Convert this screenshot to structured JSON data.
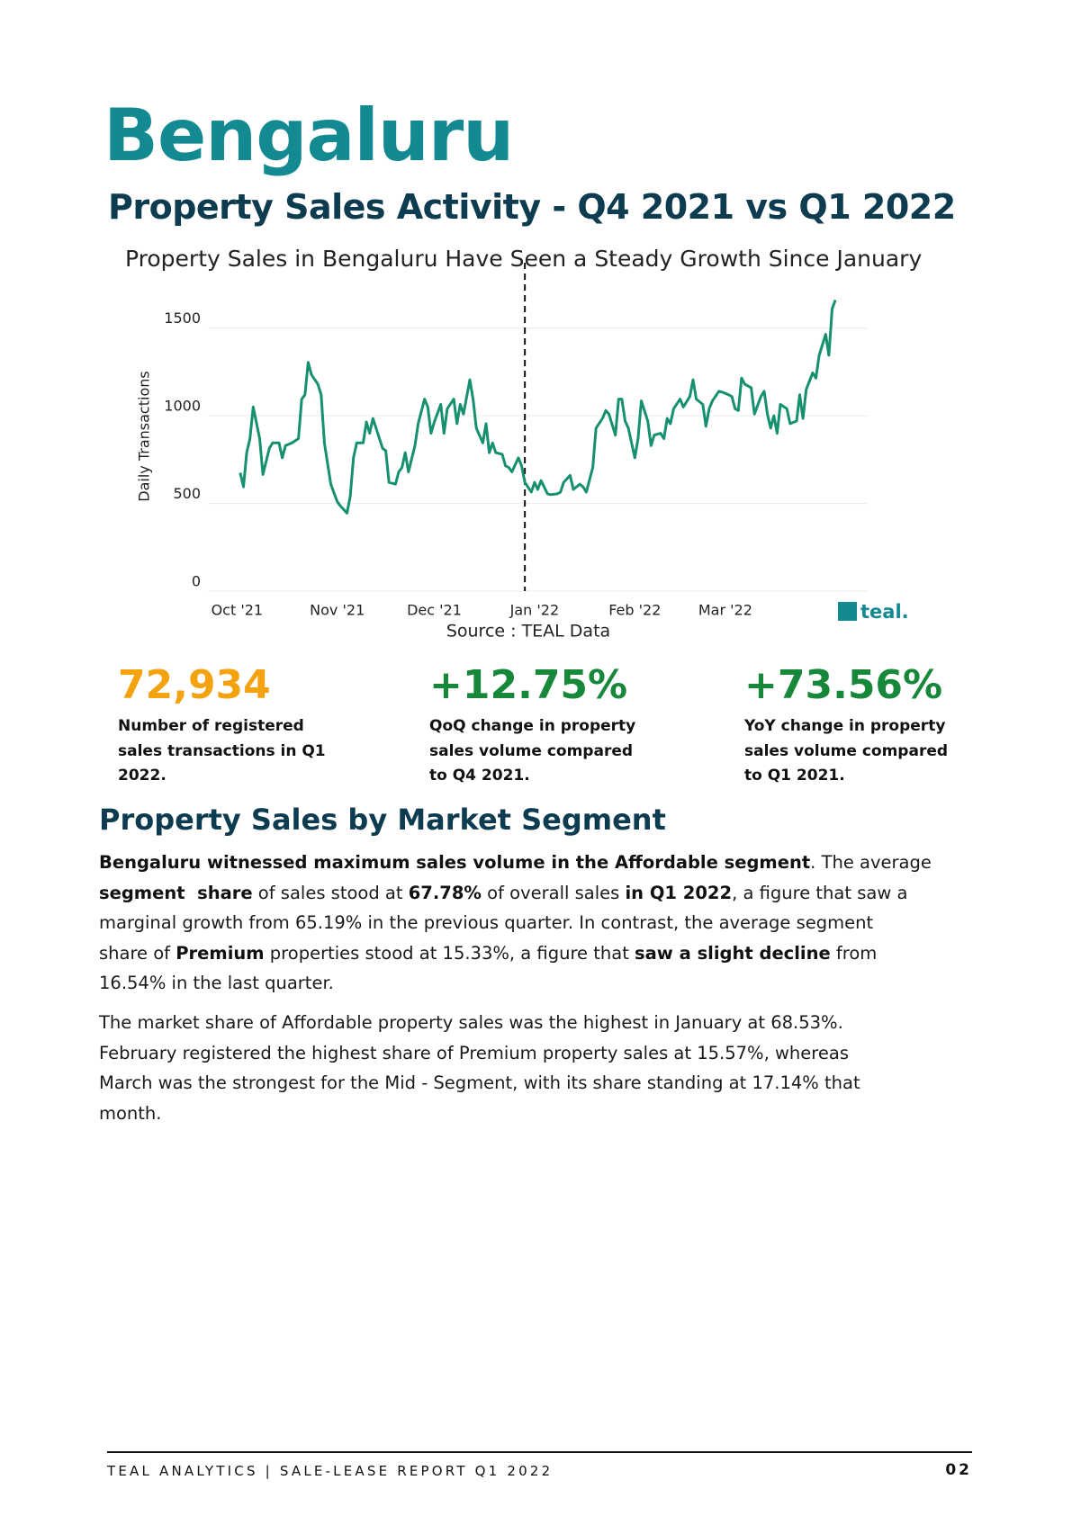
{
  "header": {
    "title": "Bengaluru",
    "subtitle": "Property Sales Activity - Q4 2021 vs Q1 2022"
  },
  "chart_data": {
    "type": "line",
    "title": "Property Sales in Bengaluru Have Seen a Steady Growth Since January",
    "y_label": "Daily Transactions",
    "source": "Source : TEAL Data",
    "logo": "teal.",
    "color": "#16906e",
    "grid": true,
    "x": [
      1,
      2,
      3,
      4,
      5,
      7,
      8,
      10,
      11,
      13,
      14,
      15,
      17,
      19,
      20,
      21,
      22,
      23,
      25,
      26,
      27,
      29,
      31,
      32,
      34,
      35,
      36,
      37,
      39,
      40,
      41,
      42,
      43,
      45,
      46,
      47,
      49,
      50,
      51,
      52,
      53,
      55,
      56,
      58,
      59,
      60,
      61,
      63,
      64,
      65,
      67,
      68,
      69,
      70,
      72,
      73,
      74,
      76,
      77,
      78,
      79,
      80,
      82,
      83,
      84,
      85,
      87,
      88,
      89,
      91,
      92,
      93,
      94,
      96,
      97,
      99,
      100,
      101,
      103,
      104,
      106,
      107,
      108,
      110,
      111,
      113,
      114,
      115,
      117,
      118,
      119,
      120,
      121,
      123,
      124,
      125,
      127,
      128,
      129,
      131,
      132,
      133,
      134,
      135,
      137,
      138,
      140,
      141,
      142,
      144,
      145,
      146,
      147,
      149,
      150,
      152,
      153,
      154,
      155,
      156,
      157,
      159,
      160,
      162,
      163,
      164,
      165,
      166,
      167,
      168,
      170,
      171,
      173,
      174,
      175,
      176,
      178,
      179,
      180,
      182,
      183,
      184,
      185
    ],
    "values": [
      675,
      595,
      790,
      870,
      1050,
      870,
      665,
      815,
      845,
      845,
      760,
      830,
      845,
      870,
      1095,
      1120,
      1305,
      1235,
      1180,
      1120,
      845,
      610,
      510,
      485,
      445,
      540,
      760,
      845,
      845,
      965,
      900,
      985,
      930,
      815,
      800,
      620,
      610,
      680,
      705,
      790,
      680,
      830,
      955,
      1095,
      1050,
      900,
      965,
      1065,
      900,
      1040,
      1095,
      955,
      1065,
      1010,
      1205,
      1095,
      930,
      845,
      955,
      790,
      845,
      790,
      780,
      715,
      705,
      680,
      760,
      715,
      620,
      565,
      620,
      580,
      630,
      555,
      550,
      555,
      565,
      620,
      660,
      580,
      610,
      595,
      565,
      705,
      930,
      985,
      1030,
      1010,
      890,
      1095,
      1095,
      970,
      930,
      760,
      870,
      1085,
      970,
      830,
      890,
      900,
      870,
      985,
      955,
      1040,
      1095,
      1050,
      1110,
      1205,
      1095,
      1065,
      940,
      1040,
      1085,
      1140,
      1135,
      1120,
      1110,
      1040,
      1030,
      1215,
      1180,
      1160,
      1010,
      1110,
      1140,
      1010,
      930,
      1000,
      900,
      1065,
      1040,
      955,
      970,
      1120,
      985,
      1150,
      1245,
      1215,
      1345,
      1465,
      1345,
      1610,
      1660
    ],
    "xlim": [
      -9,
      195
    ],
    "xticks": [
      {
        "value": 0,
        "label": "Oct '21"
      },
      {
        "value": 31,
        "label": "Nov '21"
      },
      {
        "value": 61,
        "label": "Dec '21"
      },
      {
        "value": 92,
        "label": "Jan '22"
      },
      {
        "value": 123,
        "label": "Feb '22"
      },
      {
        "value": 151,
        "label": "Mar '22"
      }
    ],
    "ylim": [
      0,
      1750
    ],
    "yticks": [
      0,
      500,
      1000,
      1500
    ],
    "vlines": [
      89
    ]
  },
  "stats": [
    {
      "value": "72,934",
      "color": "#f4a20f",
      "description": [
        "Number of registered",
        "sales transactions in  Q1",
        "2022."
      ]
    },
    {
      "value": "+12.75%",
      "color": "#17883a",
      "description": [
        "QoQ change in property",
        "sales volume compared",
        "to Q4 2021."
      ]
    },
    {
      "value": "+73.56%",
      "color": "#17883a",
      "description": [
        "YoY change in property",
        "sales volume compared",
        "to Q1 2021."
      ]
    }
  ],
  "section": {
    "title": "Property Sales by Market Segment",
    "paragraphs": [
      [
        [
          {
            "text": "Bengaluru witnessed maximum sales volume in the Affordable segment",
            "bold": true
          },
          {
            "text": ". The average",
            "bold": false
          }
        ],
        [
          {
            "text": "segment  share",
            "bold": true
          },
          {
            "text": " of sales stood at ",
            "bold": false
          },
          {
            "text": "67.78%",
            "bold": true
          },
          {
            "text": " of overall sales ",
            "bold": false
          },
          {
            "text": "in Q1 2022",
            "bold": true
          },
          {
            "text": ", a figure that saw a",
            "bold": false
          }
        ],
        [
          {
            "text": "marginal growth from 65.19% in the previous quarter. In contrast, the average segment",
            "bold": false
          }
        ],
        [
          {
            "text": "share of ",
            "bold": false
          },
          {
            "text": "Premium",
            "bold": true
          },
          {
            "text": " properties stood at 15.33%, a figure that ",
            "bold": false
          },
          {
            "text": "saw a slight decline",
            "bold": true
          },
          {
            "text": " from",
            "bold": false
          }
        ],
        [
          {
            "text": "16.54% in the last quarter.",
            "bold": false
          }
        ]
      ],
      [
        [
          {
            "text": "The market share of Affordable property sales was the highest in January at 68.53%.",
            "bold": false
          }
        ],
        [
          {
            "text": "February registered the highest share of Premium property sales at 15.57%, whereas",
            "bold": false
          }
        ],
        [
          {
            "text": "March was the strongest for the Mid - Segment, with its share standing at 17.14% that",
            "bold": false
          }
        ],
        [
          {
            "text": "month.",
            "bold": false
          }
        ]
      ]
    ]
  },
  "footer": {
    "text": "TEAL ANALYTICS | SALE-LEASE REPORT Q1 2022",
    "page": "02"
  }
}
